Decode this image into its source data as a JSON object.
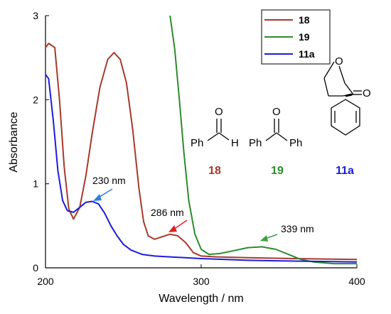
{
  "chart_data": {
    "type": "line",
    "xlabel": "Wavelength / nm",
    "ylabel": "Absorbance",
    "xlim": [
      200,
      400
    ],
    "ylim": [
      0,
      3
    ],
    "x_ticks": [
      "200",
      "300",
      "400"
    ],
    "y_ticks": [
      "0",
      "1",
      "2",
      "3"
    ],
    "grid": false,
    "legend_position": "top-right",
    "series": [
      {
        "name": "18",
        "color": "#a63a2a",
        "points": [
          [
            200,
            2.62
          ],
          [
            202,
            2.67
          ],
          [
            206,
            2.62
          ],
          [
            209,
            2.0
          ],
          [
            212,
            1.2
          ],
          [
            215,
            0.7
          ],
          [
            218,
            0.58
          ],
          [
            222,
            0.72
          ],
          [
            226,
            1.1
          ],
          [
            230,
            1.6
          ],
          [
            235,
            2.15
          ],
          [
            240,
            2.48
          ],
          [
            244,
            2.56
          ],
          [
            248,
            2.48
          ],
          [
            252,
            2.2
          ],
          [
            256,
            1.65
          ],
          [
            260,
            0.95
          ],
          [
            263,
            0.55
          ],
          [
            266,
            0.38
          ],
          [
            270,
            0.34
          ],
          [
            275,
            0.37
          ],
          [
            280,
            0.4
          ],
          [
            285,
            0.38
          ],
          [
            290,
            0.3
          ],
          [
            295,
            0.18
          ],
          [
            300,
            0.14
          ],
          [
            310,
            0.13
          ],
          [
            330,
            0.12
          ],
          [
            360,
            0.11
          ],
          [
            400,
            0.1
          ]
        ]
      },
      {
        "name": "19",
        "color": "#2e8b2e",
        "points": [
          [
            280,
            3.0
          ],
          [
            283,
            2.6
          ],
          [
            286,
            2.0
          ],
          [
            289,
            1.35
          ],
          [
            292,
            0.8
          ],
          [
            296,
            0.4
          ],
          [
            300,
            0.22
          ],
          [
            305,
            0.16
          ],
          [
            312,
            0.17
          ],
          [
            320,
            0.2
          ],
          [
            330,
            0.24
          ],
          [
            339,
            0.25
          ],
          [
            348,
            0.22
          ],
          [
            356,
            0.16
          ],
          [
            364,
            0.1
          ],
          [
            372,
            0.07
          ],
          [
            385,
            0.05
          ],
          [
            400,
            0.05
          ]
        ]
      },
      {
        "name": "11a",
        "color": "#1c1cdc",
        "points": [
          [
            200,
            2.3
          ],
          [
            202,
            2.25
          ],
          [
            205,
            1.75
          ],
          [
            208,
            1.15
          ],
          [
            211,
            0.8
          ],
          [
            214,
            0.68
          ],
          [
            218,
            0.66
          ],
          [
            222,
            0.72
          ],
          [
            226,
            0.78
          ],
          [
            230,
            0.79
          ],
          [
            234,
            0.76
          ],
          [
            238,
            0.65
          ],
          [
            242,
            0.5
          ],
          [
            246,
            0.38
          ],
          [
            250,
            0.28
          ],
          [
            255,
            0.21
          ],
          [
            262,
            0.16
          ],
          [
            270,
            0.14
          ],
          [
            280,
            0.13
          ],
          [
            300,
            0.11
          ],
          [
            330,
            0.09
          ],
          [
            360,
            0.08
          ],
          [
            400,
            0.07
          ]
        ]
      }
    ],
    "annotations": [
      {
        "text": "230 nm",
        "color": "#2e7fd6"
      },
      {
        "text": "286 nm",
        "color": "#e02020"
      },
      {
        "text": "339 nm",
        "color": "#3aa03a"
      }
    ]
  },
  "structures": {
    "s18": {
      "atom_o": "O",
      "atom_h": "H",
      "left": "Ph",
      "label": "18"
    },
    "s19": {
      "atom_o": "O",
      "left": "Ph",
      "right": "Ph",
      "label": "19"
    },
    "s11a": {
      "atom_o": "O",
      "label": "11a"
    }
  }
}
